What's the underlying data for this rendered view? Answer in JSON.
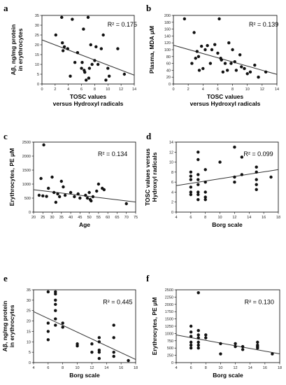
{
  "chart_data": [
    {
      "panel": "a",
      "type": "scatter",
      "xlabel": [
        "TOSC values",
        "versus Hydroxyl radicals"
      ],
      "ylabel": [
        "Aβ, ng/mg protein",
        "in erythrocytes"
      ],
      "xlim": [
        0,
        14
      ],
      "ylim": [
        0,
        35
      ],
      "xticks": [
        0,
        2,
        4,
        6,
        8,
        10,
        12,
        14
      ],
      "yticks": [
        0,
        5,
        10,
        15,
        20,
        25,
        30,
        35
      ],
      "annotation": "R² = 0.175",
      "regression": [
        [
          0,
          22.5
        ],
        [
          14,
          4.5
        ]
      ],
      "points": [
        [
          2.1,
          25
        ],
        [
          3.0,
          34
        ],
        [
          3.1,
          21
        ],
        [
          3.2,
          17
        ],
        [
          3.4,
          19
        ],
        [
          3.9,
          18
        ],
        [
          4.3,
          4
        ],
        [
          4.6,
          33
        ],
        [
          5.0,
          11
        ],
        [
          5.4,
          16
        ],
        [
          6.0,
          8
        ],
        [
          6.1,
          11
        ],
        [
          6.3,
          28
        ],
        [
          6.4,
          7
        ],
        [
          6.5,
          6
        ],
        [
          6.7,
          2
        ],
        [
          7.0,
          34
        ],
        [
          7.1,
          3
        ],
        [
          7.2,
          8
        ],
        [
          7.4,
          20
        ],
        [
          7.6,
          10
        ],
        [
          8.0,
          12
        ],
        [
          8.2,
          19
        ],
        [
          8.5,
          10
        ],
        [
          9.0,
          18
        ],
        [
          9.3,
          25
        ],
        [
          9.7,
          2
        ],
        [
          10.0,
          8
        ],
        [
          10.2,
          4
        ],
        [
          11.5,
          18
        ],
        [
          12.5,
          5
        ]
      ]
    },
    {
      "panel": "b",
      "type": "scatter",
      "xlabel": [
        "TOSC values",
        "versus Hydroxyl radicals"
      ],
      "ylabel": [
        "Plasma, MDA μM"
      ],
      "xlim": [
        0,
        14
      ],
      "ylim": [
        0,
        200
      ],
      "xticks": [
        0,
        2,
        4,
        6,
        8,
        10,
        12,
        14
      ],
      "yticks": [
        0,
        20,
        40,
        60,
        80,
        100,
        120,
        140,
        160,
        180,
        200
      ],
      "annotation": "R² = 0.139",
      "regression": [
        [
          0,
          113
        ],
        [
          14,
          28
        ]
      ],
      "points": [
        [
          1.5,
          190
        ],
        [
          2.5,
          60
        ],
        [
          2.8,
          150
        ],
        [
          3.0,
          75
        ],
        [
          3.2,
          95
        ],
        [
          3.4,
          80
        ],
        [
          3.5,
          40
        ],
        [
          3.8,
          110
        ],
        [
          4.0,
          45
        ],
        [
          4.3,
          100
        ],
        [
          4.6,
          112
        ],
        [
          5.0,
          60
        ],
        [
          5.2,
          100
        ],
        [
          5.6,
          115
        ],
        [
          6.0,
          90
        ],
        [
          6.2,
          190
        ],
        [
          6.4,
          75
        ],
        [
          6.5,
          70
        ],
        [
          6.7,
          35
        ],
        [
          7.0,
          60
        ],
        [
          7.3,
          40
        ],
        [
          7.5,
          120
        ],
        [
          7.8,
          60
        ],
        [
          8.0,
          100
        ],
        [
          8.3,
          65
        ],
        [
          8.5,
          40
        ],
        [
          9.0,
          85
        ],
        [
          9.2,
          50
        ],
        [
          9.6,
          45
        ],
        [
          10.0,
          30
        ],
        [
          10.4,
          35
        ],
        [
          11.0,
          55
        ],
        [
          11.5,
          20
        ],
        [
          12.5,
          35
        ]
      ]
    },
    {
      "panel": "c",
      "type": "scatter",
      "xlabel": [
        "Age"
      ],
      "ylabel": [
        "Erythrocytes, PE μM"
      ],
      "xlim": [
        20,
        75
      ],
      "ylim": [
        0,
        2500
      ],
      "xticks": [
        20,
        25,
        30,
        35,
        40,
        45,
        50,
        55,
        60,
        65,
        70,
        75
      ],
      "yticks": [
        0,
        500,
        1000,
        1500,
        2000,
        2500
      ],
      "annotation": "R² = 0.134",
      "regression": [
        [
          20,
          800
        ],
        [
          75,
          360
        ]
      ],
      "points": [
        [
          23,
          600
        ],
        [
          24,
          1200
        ],
        [
          25,
          580
        ],
        [
          25.5,
          2400
        ],
        [
          27,
          560
        ],
        [
          28,
          850
        ],
        [
          30,
          1250
        ],
        [
          31,
          700
        ],
        [
          32,
          350
        ],
        [
          33,
          650
        ],
        [
          34,
          550
        ],
        [
          35,
          1100
        ],
        [
          36,
          900
        ],
        [
          37,
          600
        ],
        [
          40,
          700
        ],
        [
          42,
          550
        ],
        [
          44,
          650
        ],
        [
          45,
          500
        ],
        [
          48,
          600
        ],
        [
          49,
          500
        ],
        [
          50,
          700
        ],
        [
          50.5,
          450
        ],
        [
          51,
          400
        ],
        [
          52,
          550
        ],
        [
          54,
          750
        ],
        [
          55,
          1000
        ],
        [
          57,
          850
        ],
        [
          58,
          800
        ],
        [
          70,
          300
        ]
      ]
    },
    {
      "panel": "d",
      "type": "scatter",
      "xlabel": [
        "Borg scale"
      ],
      "ylabel": [
        "TOSC values versus",
        "Hydroxyl radicals"
      ],
      "xlim": [
        4,
        18
      ],
      "ylim": [
        0,
        14
      ],
      "xticks": [
        4,
        6,
        8,
        10,
        12,
        14,
        16,
        18
      ],
      "yticks": [
        0,
        2,
        4,
        6,
        8,
        10,
        12,
        14
      ],
      "annotation": "R² = 0.099",
      "regression": [
        [
          4,
          5.3
        ],
        [
          18,
          8.5
        ]
      ],
      "points": [
        [
          6,
          3.5
        ],
        [
          6,
          4.0
        ],
        [
          6,
          5.0
        ],
        [
          6,
          6.5
        ],
        [
          6,
          7.2
        ],
        [
          6,
          8.0
        ],
        [
          7,
          2.5
        ],
        [
          7,
          3.5
        ],
        [
          7,
          4.0
        ],
        [
          7,
          5.5
        ],
        [
          7,
          6.5
        ],
        [
          7,
          7.5
        ],
        [
          7,
          10.5
        ],
        [
          7,
          12.0
        ],
        [
          8,
          2.5
        ],
        [
          8,
          3.0
        ],
        [
          8,
          4.0
        ],
        [
          8,
          6.0
        ],
        [
          8,
          8.5
        ],
        [
          10,
          10.0
        ],
        [
          12,
          6.0
        ],
        [
          12,
          7.0
        ],
        [
          12,
          13.0
        ],
        [
          13,
          7.5
        ],
        [
          13,
          11.0
        ],
        [
          15,
          4.5
        ],
        [
          15,
          5.5
        ],
        [
          15,
          6.5
        ],
        [
          15,
          8.0
        ],
        [
          15,
          9.0
        ],
        [
          17,
          7.0
        ]
      ]
    },
    {
      "panel": "e",
      "type": "scatter",
      "xlabel": [
        "Borg scale"
      ],
      "ylabel": [
        "Aβ, ng/mg protein",
        "in erythrocytes"
      ],
      "xlim": [
        4,
        18
      ],
      "ylim": [
        0,
        35
      ],
      "xticks": [
        4,
        6,
        8,
        10,
        12,
        14,
        16,
        18
      ],
      "yticks": [
        0,
        5,
        10,
        15,
        20,
        25,
        30,
        35
      ],
      "annotation": "R² = 0.445",
      "regression": [
        [
          4,
          24.5
        ],
        [
          18,
          1.5
        ]
      ],
      "points": [
        [
          6,
          34
        ],
        [
          6,
          11
        ],
        [
          6,
          15
        ],
        [
          6,
          19
        ],
        [
          7,
          34
        ],
        [
          7,
          33
        ],
        [
          7,
          30
        ],
        [
          7,
          28
        ],
        [
          7,
          25
        ],
        [
          7,
          21
        ],
        [
          7,
          18
        ],
        [
          8,
          19
        ],
        [
          8,
          17
        ],
        [
          10,
          9
        ],
        [
          10,
          8
        ],
        [
          12,
          9
        ],
        [
          12,
          5
        ],
        [
          13,
          12
        ],
        [
          13,
          10
        ],
        [
          13,
          6
        ],
        [
          13,
          5
        ],
        [
          13,
          2
        ],
        [
          15,
          18
        ],
        [
          15,
          12
        ],
        [
          15,
          5
        ],
        [
          15,
          3
        ],
        [
          17,
          1
        ]
      ]
    },
    {
      "panel": "f",
      "type": "scatter",
      "xlabel": [
        "Borg scale"
      ],
      "ylabel": [
        "Erythrocytes, PE μM"
      ],
      "xlim": [
        4,
        18
      ],
      "ylim": [
        0,
        2500
      ],
      "xticks": [
        4,
        6,
        8,
        10,
        12,
        14,
        16,
        18
      ],
      "yticks": [
        0,
        250,
        500,
        750,
        1000,
        1250,
        1500,
        1750,
        2000,
        2250,
        2500
      ],
      "annotation": "R² = 0.130",
      "regression": [
        [
          4,
          950
        ],
        [
          18,
          300
        ]
      ],
      "points": [
        [
          6,
          1250
        ],
        [
          6,
          1050
        ],
        [
          6,
          900
        ],
        [
          6,
          700
        ],
        [
          6,
          600
        ],
        [
          6,
          500
        ],
        [
          7,
          2400
        ],
        [
          7,
          1100
        ],
        [
          7,
          950
        ],
        [
          7,
          850
        ],
        [
          7,
          700
        ],
        [
          7,
          600
        ],
        [
          7,
          500
        ],
        [
          8,
          950
        ],
        [
          8,
          850
        ],
        [
          10,
          650
        ],
        [
          10,
          300
        ],
        [
          12,
          650
        ],
        [
          12,
          550
        ],
        [
          13,
          550
        ],
        [
          13,
          450
        ],
        [
          15,
          700
        ],
        [
          15,
          600
        ],
        [
          15,
          550
        ],
        [
          15,
          500
        ],
        [
          17,
          300
        ]
      ]
    }
  ]
}
